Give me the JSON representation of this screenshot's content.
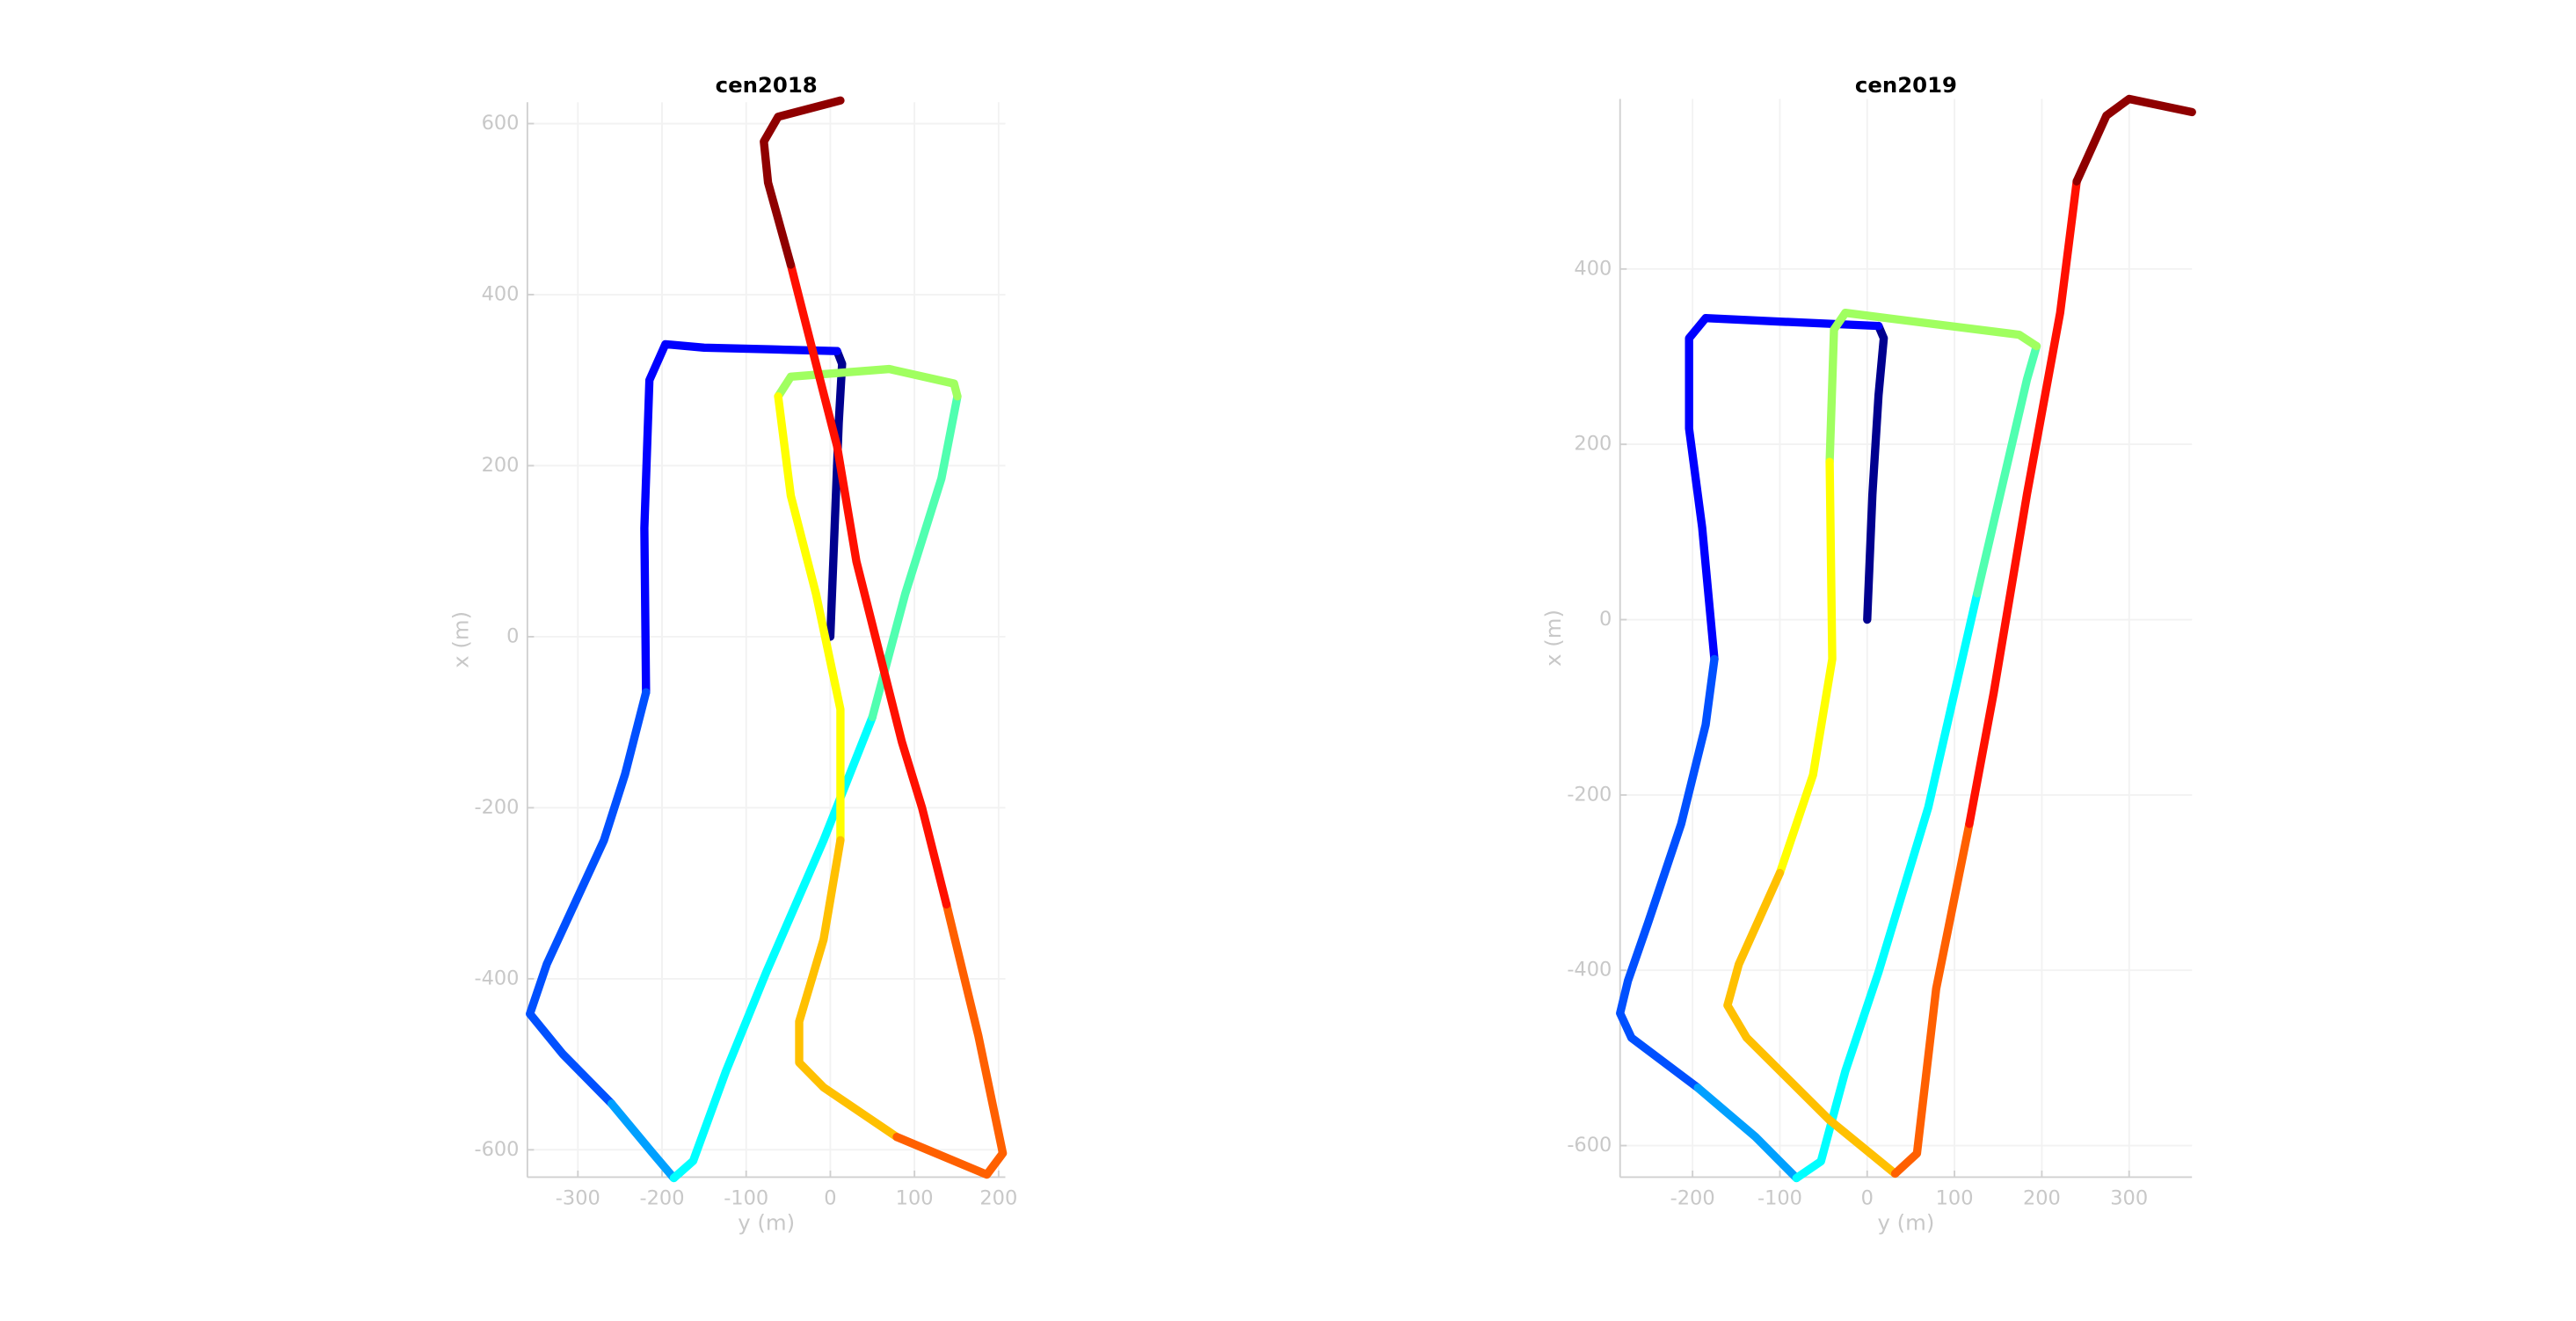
{
  "chart_data": [
    {
      "type": "line",
      "title": "cen2018",
      "xlabel": "y (m)",
      "ylabel": "x (m)",
      "xlim": [
        -360,
        208
      ],
      "ylim": [
        -632,
        625
      ],
      "xticks": [
        -300,
        -200,
        -100,
        0,
        100,
        200
      ],
      "yticks": [
        -600,
        -400,
        -200,
        0,
        200,
        400,
        600
      ],
      "grid": true,
      "series": [
        {
          "color": "#00008f",
          "x": [
            0,
            4,
            10,
            14,
            8
          ],
          "values": [
            0,
            100,
            250,
            319,
            334
          ]
        },
        {
          "color": "#0000ff",
          "x": [
            8,
            -70,
            -150,
            -196,
            -215,
            -221,
            -219
          ],
          "values": [
            334,
            336,
            338,
            342,
            300,
            127,
            -65
          ]
        },
        {
          "color": "#0050ff",
          "x": [
            -219,
            -244,
            -269,
            -337,
            -357,
            -318,
            -260
          ],
          "values": [
            -65,
            -161,
            -238,
            -383,
            -441,
            -488,
            -546
          ]
        },
        {
          "color": "#00a0ff",
          "x": [
            -260,
            -211,
            -186
          ],
          "values": [
            -546,
            -604,
            -633
          ]
        },
        {
          "color": "#00ffff",
          "x": [
            -186,
            -163,
            -124,
            -76,
            -8,
            50
          ],
          "values": [
            -633,
            -613,
            -508,
            -392,
            -238,
            -94
          ]
        },
        {
          "color": "#50ffb0",
          "x": [
            50,
            89,
            132,
            151
          ],
          "values": [
            -94,
            50,
            185,
            281
          ]
        },
        {
          "color": "#a0ff60",
          "x": [
            151,
            147,
            70,
            -47,
            -62
          ],
          "values": [
            281,
            296,
            313,
            304,
            281
          ]
        },
        {
          "color": "#ffff00",
          "x": [
            -62,
            -47,
            -17,
            12,
            12
          ],
          "values": [
            281,
            165,
            50,
            -85,
            -238
          ]
        },
        {
          "color": "#ffc000",
          "x": [
            12,
            -8,
            -37,
            -37,
            -8,
            79
          ],
          "values": [
            -238,
            -354,
            -450,
            -498,
            -527,
            -585
          ]
        },
        {
          "color": "#ff6000",
          "x": [
            79,
            186,
            205,
            176,
            138
          ],
          "values": [
            -585,
            -629,
            -604,
            -467,
            -313
          ]
        },
        {
          "color": "#ff1000",
          "x": [
            138,
            109,
            85,
            31,
            8,
            -17,
            -47
          ],
          "values": [
            -313,
            -200,
            -123,
            88,
            223,
            319,
            435
          ]
        },
        {
          "color": "#8f0000",
          "x": [
            -47,
            -74,
            -79,
            -62,
            12
          ],
          "values": [
            435,
            531,
            579,
            608,
            627
          ]
        }
      ]
    },
    {
      "type": "line",
      "title": "cen2019",
      "xlabel": "y (m)",
      "ylabel": "x (m)",
      "xlim": [
        -283,
        372
      ],
      "ylim": [
        -636,
        594
      ],
      "xticks": [
        -200,
        -100,
        0,
        100,
        200,
        300
      ],
      "yticks": [
        -600,
        -400,
        -200,
        0,
        200,
        400
      ],
      "grid": true,
      "series": [
        {
          "color": "#00008f",
          "x": [
            0,
            6,
            13,
            19,
            13
          ],
          "values": [
            0,
            143,
            256,
            321,
            335
          ]
        },
        {
          "color": "#0000ff",
          "x": [
            13,
            -100,
            -185,
            -204,
            -204,
            -189,
            -175
          ],
          "values": [
            335,
            340,
            344,
            321,
            218,
            105,
            -45
          ]
        },
        {
          "color": "#0050ff",
          "x": [
            -175,
            -185,
            -213,
            -251,
            -274,
            -283,
            -270,
            -194
          ],
          "values": [
            -45,
            -120,
            -233,
            -346,
            -412,
            -449,
            -477,
            -534
          ]
        },
        {
          "color": "#00a0ff",
          "x": [
            -194,
            -128,
            -81
          ],
          "values": [
            -534,
            -590,
            -637
          ]
        },
        {
          "color": "#00ffff",
          "x": [
            -81,
            -53,
            -25,
            13,
            70,
            126
          ],
          "values": [
            -637,
            -618,
            -515,
            -402,
            -214,
            30
          ]
        },
        {
          "color": "#50ffb0",
          "x": [
            126,
            183,
            194
          ],
          "values": [
            30,
            274,
            312
          ]
        },
        {
          "color": "#a0ff60",
          "x": [
            194,
            174,
            70,
            -25,
            -38,
            -43
          ],
          "values": [
            312,
            325,
            338,
            350,
            331,
            180
          ]
        },
        {
          "color": "#ffff00",
          "x": [
            -43,
            -40,
            -62,
            -100
          ],
          "values": [
            180,
            -45,
            -177,
            -289
          ]
        },
        {
          "color": "#ffc000",
          "x": [
            -100,
            -147,
            -160,
            -138,
            -43,
            32
          ],
          "values": [
            -289,
            -393,
            -440,
            -477,
            -571,
            -632
          ]
        },
        {
          "color": "#ff6000",
          "x": [
            32,
            57,
            79,
            117
          ],
          "values": [
            -632,
            -609,
            -421,
            -233
          ]
        },
        {
          "color": "#ff1000",
          "x": [
            117,
            145,
            183,
            221,
            240
          ],
          "values": [
            -233,
            -83,
            143,
            350,
            500
          ]
        },
        {
          "color": "#8f0000",
          "x": [
            240,
            274,
            300,
            372
          ],
          "values": [
            500,
            575,
            594,
            579
          ]
        }
      ]
    }
  ]
}
